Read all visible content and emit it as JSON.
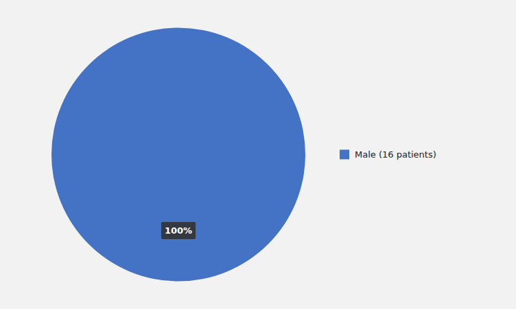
{
  "chart_data": {
    "type": "pie",
    "categories": [
      "Male (16 patients)"
    ],
    "values": [
      100
    ],
    "value_labels": [
      "100%"
    ],
    "colors": [
      "#4472C4"
    ],
    "data_labels": true,
    "legend": "right"
  }
}
